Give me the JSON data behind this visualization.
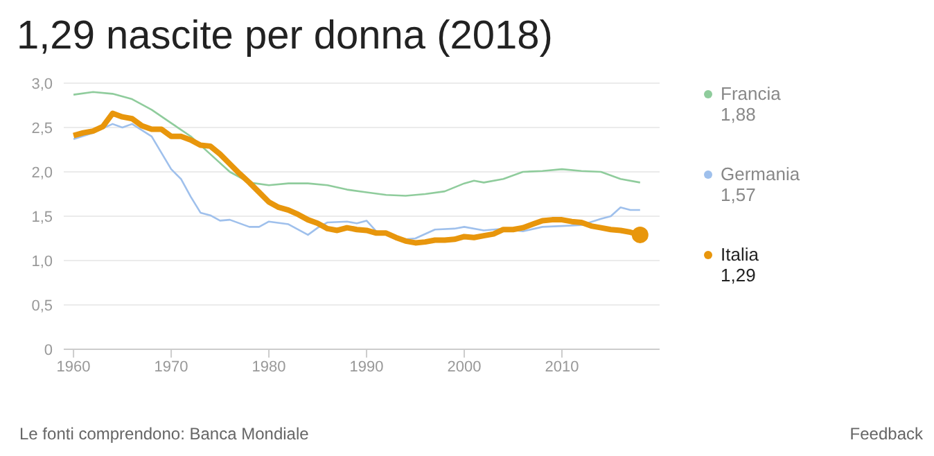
{
  "chart_data": {
    "type": "line",
    "title": "1,29 nascite per donna (2018)",
    "annotations": [
      "Le fonti comprendono: Banca Mondiale",
      "Feedback",
      "1,88",
      "1,57",
      "1,29"
    ],
    "xlim": [
      1959,
      2020
    ],
    "xticks": [
      1960,
      1970,
      1980,
      1990,
      2000,
      2010
    ],
    "ylim": [
      0,
      3
    ],
    "yticks": [
      0,
      {
        "value": 0.5,
        "label": "0,5"
      },
      {
        "value": 1,
        "label": "1,0"
      },
      {
        "value": 1.5,
        "label": "1,5"
      },
      {
        "value": 2,
        "label": "2,0"
      },
      {
        "value": 2.5,
        "label": "2,5"
      },
      {
        "value": 3,
        "label": "3,0"
      }
    ],
    "grid": "y",
    "legend": "right",
    "marker": "none",
    "line_style": "solid",
    "series": [
      {
        "name": "Francia",
        "color": "#8fcc9c",
        "x": [
          1960,
          1962,
          1964,
          1966,
          1968,
          1970,
          1972,
          1974,
          1976,
          1978,
          1980,
          1982,
          1984,
          1986,
          1988,
          1990,
          1992,
          1994,
          1996,
          1998,
          2000,
          2001,
          2002,
          2004,
          2006,
          2008,
          2010,
          2012,
          2014,
          2016,
          2018
        ],
        "values": [
          2.87,
          2.9,
          2.88,
          2.82,
          2.7,
          2.55,
          2.4,
          2.2,
          2.0,
          1.88,
          1.85,
          1.87,
          1.87,
          1.85,
          1.8,
          1.77,
          1.74,
          1.73,
          1.75,
          1.78,
          1.87,
          1.9,
          1.88,
          1.92,
          2.0,
          2.01,
          2.03,
          2.01,
          2.0,
          1.92,
          1.88
        ]
      },
      {
        "name": "Germania",
        "color": "#9fc0ec",
        "x": [
          1960,
          1962,
          1964,
          1965,
          1966,
          1968,
          1970,
          1971,
          1972,
          1973,
          1974,
          1975,
          1976,
          1978,
          1979,
          1980,
          1982,
          1984,
          1985,
          1986,
          1988,
          1989,
          1990,
          1991,
          1992,
          1994,
          1995,
          1997,
          1999,
          2000,
          2002,
          2004,
          2006,
          2008,
          2010,
          2012,
          2014,
          2015,
          2016,
          2017,
          2018
        ],
        "values": [
          2.37,
          2.44,
          2.54,
          2.5,
          2.54,
          2.4,
          2.03,
          1.92,
          1.72,
          1.54,
          1.51,
          1.45,
          1.46,
          1.38,
          1.38,
          1.44,
          1.41,
          1.29,
          1.37,
          1.43,
          1.44,
          1.42,
          1.45,
          1.33,
          1.3,
          1.24,
          1.25,
          1.35,
          1.36,
          1.38,
          1.34,
          1.36,
          1.33,
          1.38,
          1.39,
          1.4,
          1.47,
          1.5,
          1.6,
          1.57,
          1.57
        ]
      },
      {
        "name": "Italia",
        "color": "#e8960c",
        "x": [
          1960,
          1961,
          1962,
          1963,
          1964,
          1965,
          1966,
          1967,
          1968,
          1969,
          1970,
          1971,
          1972,
          1973,
          1974,
          1975,
          1976,
          1977,
          1978,
          1979,
          1980,
          1981,
          1982,
          1983,
          1984,
          1985,
          1986,
          1987,
          1988,
          1989,
          1990,
          1991,
          1992,
          1993,
          1994,
          1995,
          1996,
          1997,
          1998,
          1999,
          2000,
          2001,
          2002,
          2003,
          2004,
          2005,
          2006,
          2007,
          2008,
          2009,
          2010,
          2011,
          2012,
          2013,
          2014,
          2015,
          2016,
          2017,
          2018
        ],
        "values": [
          2.41,
          2.44,
          2.46,
          2.51,
          2.66,
          2.62,
          2.6,
          2.52,
          2.48,
          2.48,
          2.4,
          2.4,
          2.36,
          2.3,
          2.29,
          2.2,
          2.09,
          1.98,
          1.88,
          1.77,
          1.66,
          1.6,
          1.57,
          1.52,
          1.46,
          1.42,
          1.36,
          1.34,
          1.37,
          1.35,
          1.34,
          1.31,
          1.31,
          1.26,
          1.22,
          1.2,
          1.21,
          1.23,
          1.23,
          1.24,
          1.27,
          1.26,
          1.28,
          1.3,
          1.35,
          1.35,
          1.37,
          1.41,
          1.45,
          1.46,
          1.46,
          1.44,
          1.43,
          1.39,
          1.37,
          1.35,
          1.34,
          1.32,
          1.29
        ]
      }
    ]
  }
}
